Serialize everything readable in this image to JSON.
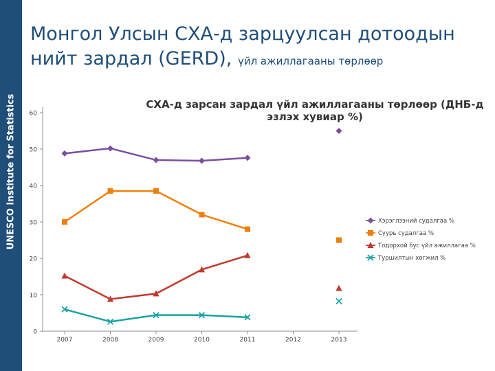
{
  "sidebar": {
    "label": "UNESCO Institute for Statistics"
  },
  "slide": {
    "title_line1": "Монгол Улсын СХА-д зарцуулсан дотоодын",
    "title_line2": "нийт зардал (GERD),",
    "title_suffix": "үйл ажиллагааны төрлөөр"
  },
  "chart_data": {
    "type": "line",
    "title": "СХА-д зарсан зардал үйл ажиллагааны төрлөөр (ДНБ-д эзлэх хувиар %)",
    "title_lines": [
      "СХА-д зарсан зардал үйл ажиллагааны төрлөөр (ДНБ-д",
      "эзлэх хувиар %)"
    ],
    "categories": [
      "2007",
      "2008",
      "2009",
      "2010",
      "2011",
      "2012",
      "2013"
    ],
    "y_ticks": [
      0,
      10,
      20,
      30,
      40,
      50,
      60
    ],
    "ylim": [
      0,
      60
    ],
    "grid": false,
    "legend_position": "right",
    "series": [
      {
        "name": "Хэрэглээний судалгаа %",
        "color": "#7b4fa0",
        "marker": "diamond",
        "values": [
          48.8,
          50.2,
          47.0,
          46.8,
          47.6,
          null,
          55.0
        ]
      },
      {
        "name": "Суурь судалгаа %",
        "color": "#f07f09",
        "marker": "square",
        "values": [
          30.0,
          38.5,
          38.5,
          32.0,
          28.0,
          null,
          25.0
        ]
      },
      {
        "name": "Тодорхой бус үйл ажиллагаа %",
        "color": "#c0392b",
        "marker": "triangle",
        "values": [
          15.2,
          8.8,
          10.3,
          16.9,
          20.8,
          null,
          11.8
        ]
      },
      {
        "name": "Туршилтын хөгжил %",
        "color": "#1aa3a3",
        "marker": "x",
        "values": [
          6.0,
          2.6,
          4.4,
          4.4,
          3.8,
          null,
          8.2
        ]
      }
    ]
  }
}
